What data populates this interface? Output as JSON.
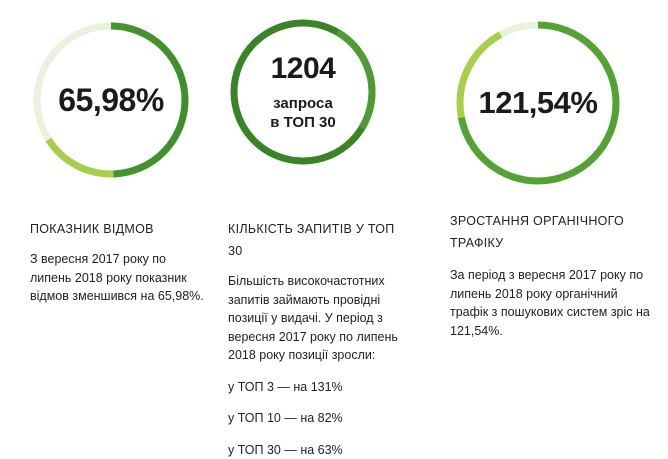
{
  "colors": {
    "ring_dark": "#3a8c2a",
    "ring_mid": "#5ea93b",
    "ring_light": "#a6cf4a",
    "text": "#222222"
  },
  "stats": [
    {
      "value": "65,98%",
      "progress": 0.66,
      "title": "ПОКАЗНИК ВІДМОВ",
      "description": "З вересня 2017 року по липень 2018 року показник відмов зменшився на 65,98%."
    },
    {
      "value": "1204",
      "line2": "запроса",
      "line3": "в ТОП 30",
      "progress": 1.0,
      "title": "КІЛЬКІСТЬ ЗАПИТІВ У ТОП 30",
      "description": "Більшість високочастотних запитів займають провідні позиції у видачі. У період з вересня 2017 року по липень 2018 року позиції зросли:",
      "items": [
        "у ТОП 3 — на 131%",
        "у ТОП 10 — на 82%",
        "у ТОП 30 — на 63%"
      ]
    },
    {
      "value": "121,54%",
      "progress": 0.92,
      "title": "ЗРОСТАННЯ ОРГАНІЧНОГО ТРАФІКУ",
      "description": "За період з вересня 2017 року по липень 2018 року органічний трафік з пошукових систем зріс на 121,54%."
    }
  ]
}
